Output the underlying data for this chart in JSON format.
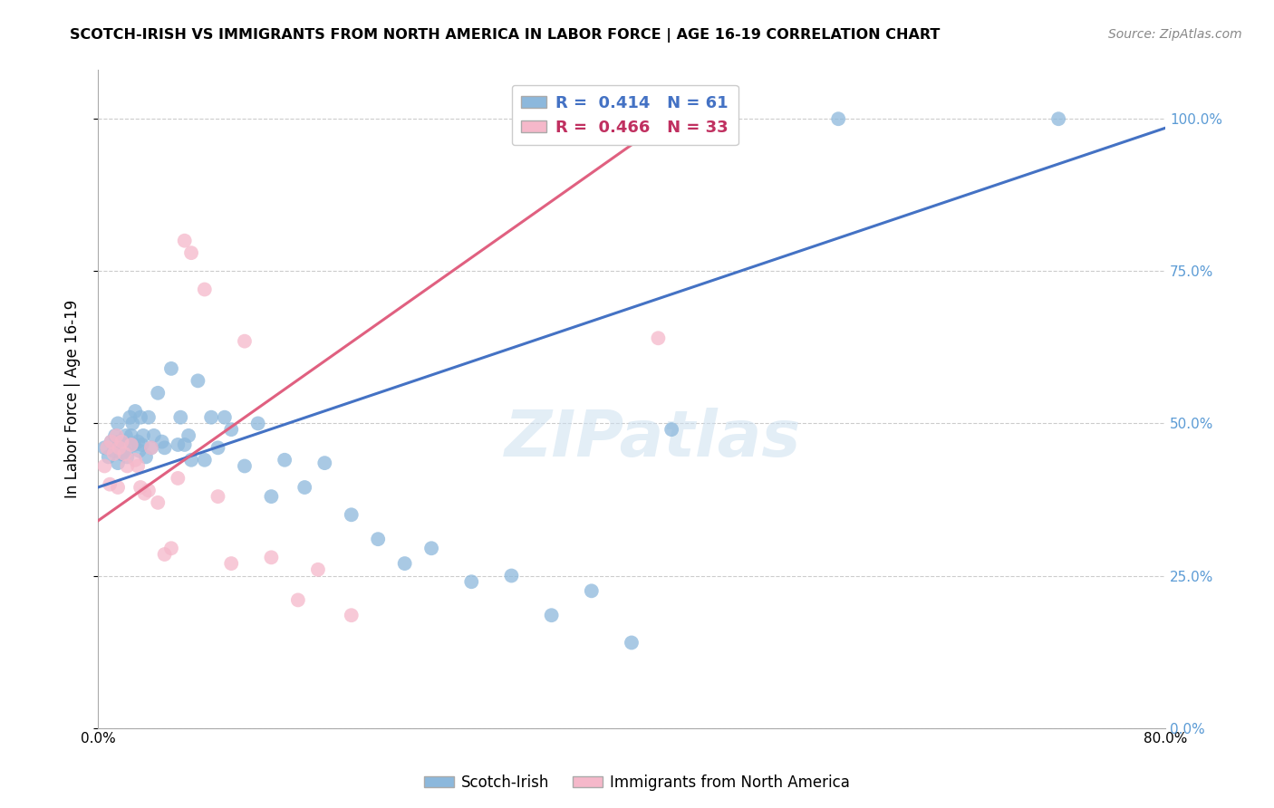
{
  "title": "SCOTCH-IRISH VS IMMIGRANTS FROM NORTH AMERICA IN LABOR FORCE | AGE 16-19 CORRELATION CHART",
  "source": "Source: ZipAtlas.com",
  "ylabel": "In Labor Force | Age 16-19",
  "xlim": [
    0.0,
    0.8
  ],
  "ylim": [
    0.0,
    1.08
  ],
  "yticks": [
    0.0,
    0.25,
    0.5,
    0.75,
    1.0
  ],
  "blue_R": 0.414,
  "blue_N": 61,
  "pink_R": 0.466,
  "pink_N": 33,
  "blue_color": "#8cb8dc",
  "pink_color": "#f5b8ca",
  "blue_line_color": "#4472c4",
  "pink_line_color": "#e06080",
  "grid_color": "#cccccc",
  "background_color": "#ffffff",
  "blue_scatter_x": [
    0.005,
    0.008,
    0.01,
    0.012,
    0.013,
    0.015,
    0.015,
    0.016,
    0.018,
    0.019,
    0.02,
    0.021,
    0.022,
    0.023,
    0.024,
    0.025,
    0.026,
    0.027,
    0.028,
    0.03,
    0.031,
    0.032,
    0.033,
    0.034,
    0.036,
    0.038,
    0.04,
    0.042,
    0.045,
    0.048,
    0.05,
    0.055,
    0.06,
    0.062,
    0.065,
    0.068,
    0.07,
    0.075,
    0.08,
    0.085,
    0.09,
    0.095,
    0.1,
    0.11,
    0.12,
    0.13,
    0.14,
    0.155,
    0.17,
    0.19,
    0.21,
    0.23,
    0.25,
    0.28,
    0.31,
    0.34,
    0.37,
    0.4,
    0.43,
    0.555,
    0.72
  ],
  "blue_scatter_y": [
    0.46,
    0.445,
    0.47,
    0.455,
    0.48,
    0.435,
    0.5,
    0.47,
    0.45,
    0.465,
    0.455,
    0.48,
    0.445,
    0.465,
    0.51,
    0.48,
    0.5,
    0.465,
    0.52,
    0.47,
    0.455,
    0.51,
    0.465,
    0.48,
    0.445,
    0.51,
    0.46,
    0.48,
    0.55,
    0.47,
    0.46,
    0.59,
    0.465,
    0.51,
    0.465,
    0.48,
    0.44,
    0.57,
    0.44,
    0.51,
    0.46,
    0.51,
    0.49,
    0.43,
    0.5,
    0.38,
    0.44,
    0.395,
    0.435,
    0.35,
    0.31,
    0.27,
    0.295,
    0.24,
    0.25,
    0.185,
    0.225,
    0.14,
    0.49,
    1.0,
    1.0
  ],
  "pink_scatter_x": [
    0.005,
    0.007,
    0.009,
    0.01,
    0.012,
    0.014,
    0.015,
    0.016,
    0.018,
    0.02,
    0.022,
    0.025,
    0.028,
    0.03,
    0.032,
    0.035,
    0.038,
    0.04,
    0.045,
    0.05,
    0.055,
    0.06,
    0.065,
    0.07,
    0.08,
    0.09,
    0.1,
    0.11,
    0.13,
    0.15,
    0.165,
    0.19,
    0.42
  ],
  "pink_scatter_y": [
    0.43,
    0.46,
    0.4,
    0.47,
    0.45,
    0.48,
    0.395,
    0.46,
    0.47,
    0.45,
    0.43,
    0.465,
    0.44,
    0.43,
    0.395,
    0.385,
    0.39,
    0.46,
    0.37,
    0.285,
    0.295,
    0.41,
    0.8,
    0.78,
    0.72,
    0.38,
    0.27,
    0.635,
    0.28,
    0.21,
    0.26,
    0.185,
    0.64
  ],
  "blue_line_x0": 0.0,
  "blue_line_x1": 0.8,
  "blue_line_y0": 0.395,
  "blue_line_y1": 0.985,
  "pink_line_x0": 0.0,
  "pink_line_x1": 0.46,
  "pink_line_y0": 0.34,
  "pink_line_y1": 1.05
}
